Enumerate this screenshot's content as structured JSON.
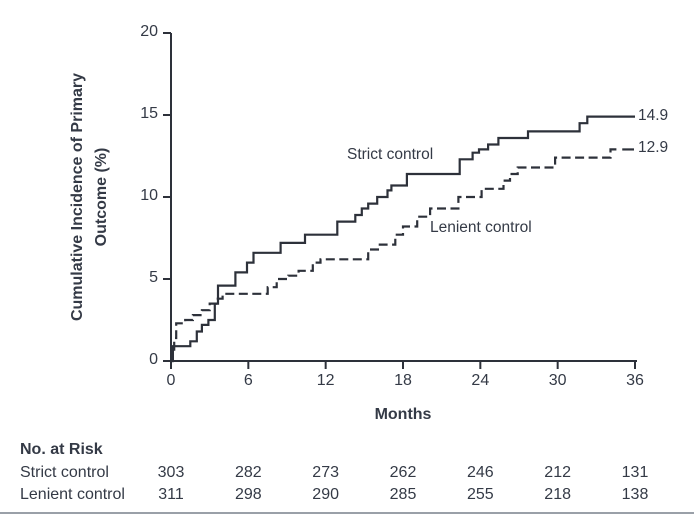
{
  "chart": {
    "y_axis_title_line1": "Cumulative Incidence of Primary",
    "y_axis_title_line2": "Outcome (%)",
    "x_axis_title": "Months"
  },
  "chart_data": {
    "type": "line",
    "subtype": "step",
    "title": "",
    "xlabel": "Months",
    "ylabel": "Cumulative Incidence of Primary Outcome (%)",
    "xlim": [
      0,
      36
    ],
    "ylim": [
      0,
      20
    ],
    "xticks": [
      0,
      6,
      12,
      18,
      24,
      30,
      36
    ],
    "yticks": [
      0,
      5,
      10,
      15,
      20
    ],
    "grid": false,
    "legend_position": "inline-annotations",
    "series": [
      {
        "name": "Strict control",
        "line_style": "solid",
        "end_label": "14.9",
        "final_value": 14.9,
        "end_month": 36,
        "steps": [
          [
            0,
            0
          ],
          [
            0.15,
            0.9
          ],
          [
            1.5,
            1.2
          ],
          [
            2.0,
            1.8
          ],
          [
            2.4,
            2.2
          ],
          [
            2.9,
            2.5
          ],
          [
            3.4,
            3.5
          ],
          [
            3.65,
            4.6
          ],
          [
            5.0,
            5.4
          ],
          [
            5.9,
            6.0
          ],
          [
            6.4,
            6.6
          ],
          [
            8.5,
            7.2
          ],
          [
            10.4,
            7.7
          ],
          [
            12.9,
            8.5
          ],
          [
            14.3,
            8.9
          ],
          [
            14.8,
            9.3
          ],
          [
            15.3,
            9.6
          ],
          [
            16.0,
            10.0
          ],
          [
            16.8,
            10.4
          ],
          [
            17.1,
            10.7
          ],
          [
            18.3,
            11.4
          ],
          [
            22.4,
            12.3
          ],
          [
            23.4,
            12.7
          ],
          [
            23.9,
            12.9
          ],
          [
            24.6,
            13.2
          ],
          [
            25.4,
            13.6
          ],
          [
            27.7,
            14.0
          ],
          [
            31.7,
            14.5
          ],
          [
            32.3,
            14.9
          ]
        ]
      },
      {
        "name": "Lenient control",
        "line_style": "dashed",
        "end_label": "12.9",
        "final_value": 12.9,
        "end_month": 34.7,
        "steps": [
          [
            0,
            0
          ],
          [
            0.1,
            0.5
          ],
          [
            0.25,
            1.4
          ],
          [
            0.4,
            2.3
          ],
          [
            1.1,
            2.5
          ],
          [
            1.7,
            2.8
          ],
          [
            2.4,
            3.1
          ],
          [
            3.0,
            3.5
          ],
          [
            3.5,
            3.8
          ],
          [
            4.0,
            4.1
          ],
          [
            7.5,
            4.5
          ],
          [
            8.2,
            5.0
          ],
          [
            9.1,
            5.2
          ],
          [
            9.9,
            5.5
          ],
          [
            11.0,
            6.0
          ],
          [
            11.6,
            6.2
          ],
          [
            15.3,
            6.8
          ],
          [
            16.2,
            7.1
          ],
          [
            17.4,
            7.7
          ],
          [
            18.0,
            8.2
          ],
          [
            19.1,
            8.8
          ],
          [
            20.1,
            9.3
          ],
          [
            22.3,
            10.0
          ],
          [
            24.1,
            10.5
          ],
          [
            25.8,
            11.0
          ],
          [
            26.3,
            11.4
          ],
          [
            26.9,
            11.8
          ],
          [
            29.8,
            12.4
          ],
          [
            34.1,
            12.9
          ]
        ]
      }
    ]
  },
  "risk_table": {
    "title": "No. at Risk",
    "months": [
      0,
      6,
      12,
      18,
      24,
      30,
      36
    ],
    "rows": [
      {
        "label": "Strict control",
        "values": [
          "303",
          "282",
          "273",
          "262",
          "246",
          "212",
          "131"
        ]
      },
      {
        "label": "Lenient control",
        "values": [
          "311",
          "298",
          "290",
          "285",
          "255",
          "218",
          "138"
        ]
      }
    ]
  },
  "colors": {
    "line": "#2d313a",
    "text": "#343a46",
    "rule": "#9aa0a8",
    "background": "#ffffff"
  }
}
